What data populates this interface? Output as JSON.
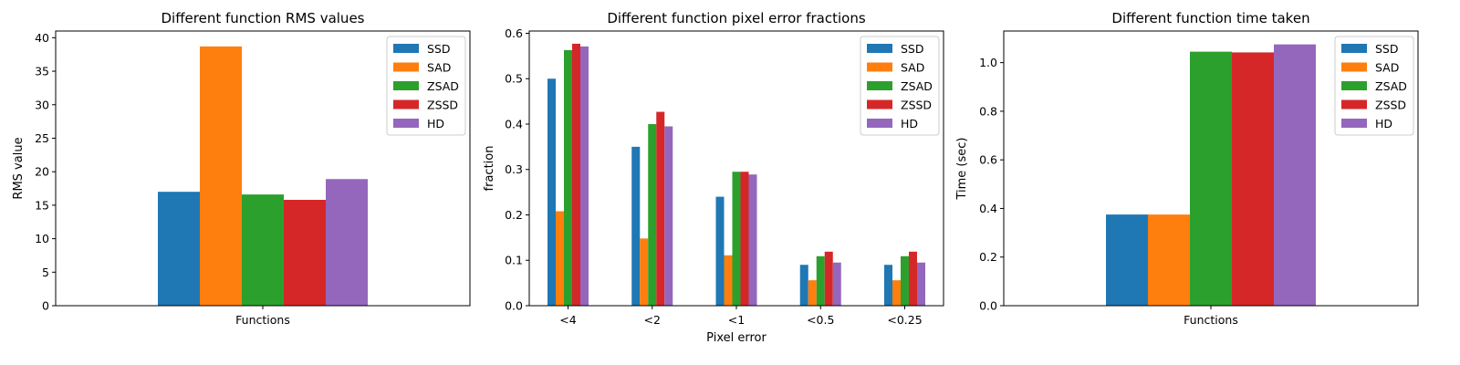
{
  "colors": {
    "SSD": "#1f77b4",
    "SAD": "#ff7f0e",
    "ZSAD": "#2ca02c",
    "ZSSD": "#d62728",
    "HD": "#9467bd"
  },
  "chart_data": [
    {
      "type": "bar",
      "title": "Different function RMS values",
      "xlabel": "",
      "ylabel": "RMS value",
      "categories": [
        "Functions"
      ],
      "ylim": [
        0,
        41
      ],
      "yticks": [
        0,
        5,
        10,
        15,
        20,
        25,
        30,
        35,
        40
      ],
      "legend_position": "top-right",
      "grid": false,
      "series": [
        {
          "name": "SSD",
          "values": [
            17.0
          ]
        },
        {
          "name": "SAD",
          "values": [
            38.7
          ]
        },
        {
          "name": "ZSAD",
          "values": [
            16.6
          ]
        },
        {
          "name": "ZSSD",
          "values": [
            15.8
          ]
        },
        {
          "name": "HD",
          "values": [
            18.9
          ]
        }
      ]
    },
    {
      "type": "bar",
      "title": "Different function pixel error fractions",
      "xlabel": "Pixel error",
      "ylabel": "fraction",
      "categories": [
        "<4",
        "<2",
        "<1",
        "<0.5",
        "<0.25"
      ],
      "ylim": [
        0,
        0.605
      ],
      "yticks": [
        0.0,
        0.1,
        0.2,
        0.3,
        0.4,
        0.5,
        0.6
      ],
      "legend_position": "top-right",
      "grid": false,
      "series": [
        {
          "name": "SSD",
          "values": [
            0.5,
            0.35,
            0.24,
            0.09,
            0.09
          ]
        },
        {
          "name": "SAD",
          "values": [
            0.208,
            0.148,
            0.111,
            0.056,
            0.056
          ]
        },
        {
          "name": "ZSAD",
          "values": [
            0.563,
            0.4,
            0.295,
            0.109,
            0.109
          ]
        },
        {
          "name": "ZSSD",
          "values": [
            0.577,
            0.427,
            0.295,
            0.119,
            0.119
          ]
        },
        {
          "name": "HD",
          "values": [
            0.571,
            0.395,
            0.289,
            0.095,
            0.095
          ]
        }
      ]
    },
    {
      "type": "bar",
      "title": "Different function time taken",
      "xlabel": "",
      "ylabel": "Time (sec)",
      "categories": [
        "Functions"
      ],
      "ylim": [
        0,
        1.13
      ],
      "yticks": [
        0.0,
        0.2,
        0.4,
        0.6,
        0.8,
        1.0
      ],
      "legend_position": "top-right",
      "grid": false,
      "series": [
        {
          "name": "SSD",
          "values": [
            0.375
          ]
        },
        {
          "name": "SAD",
          "values": [
            0.375
          ]
        },
        {
          "name": "ZSAD",
          "values": [
            1.045
          ]
        },
        {
          "name": "ZSSD",
          "values": [
            1.042
          ]
        },
        {
          "name": "HD",
          "values": [
            1.075
          ]
        }
      ]
    }
  ]
}
